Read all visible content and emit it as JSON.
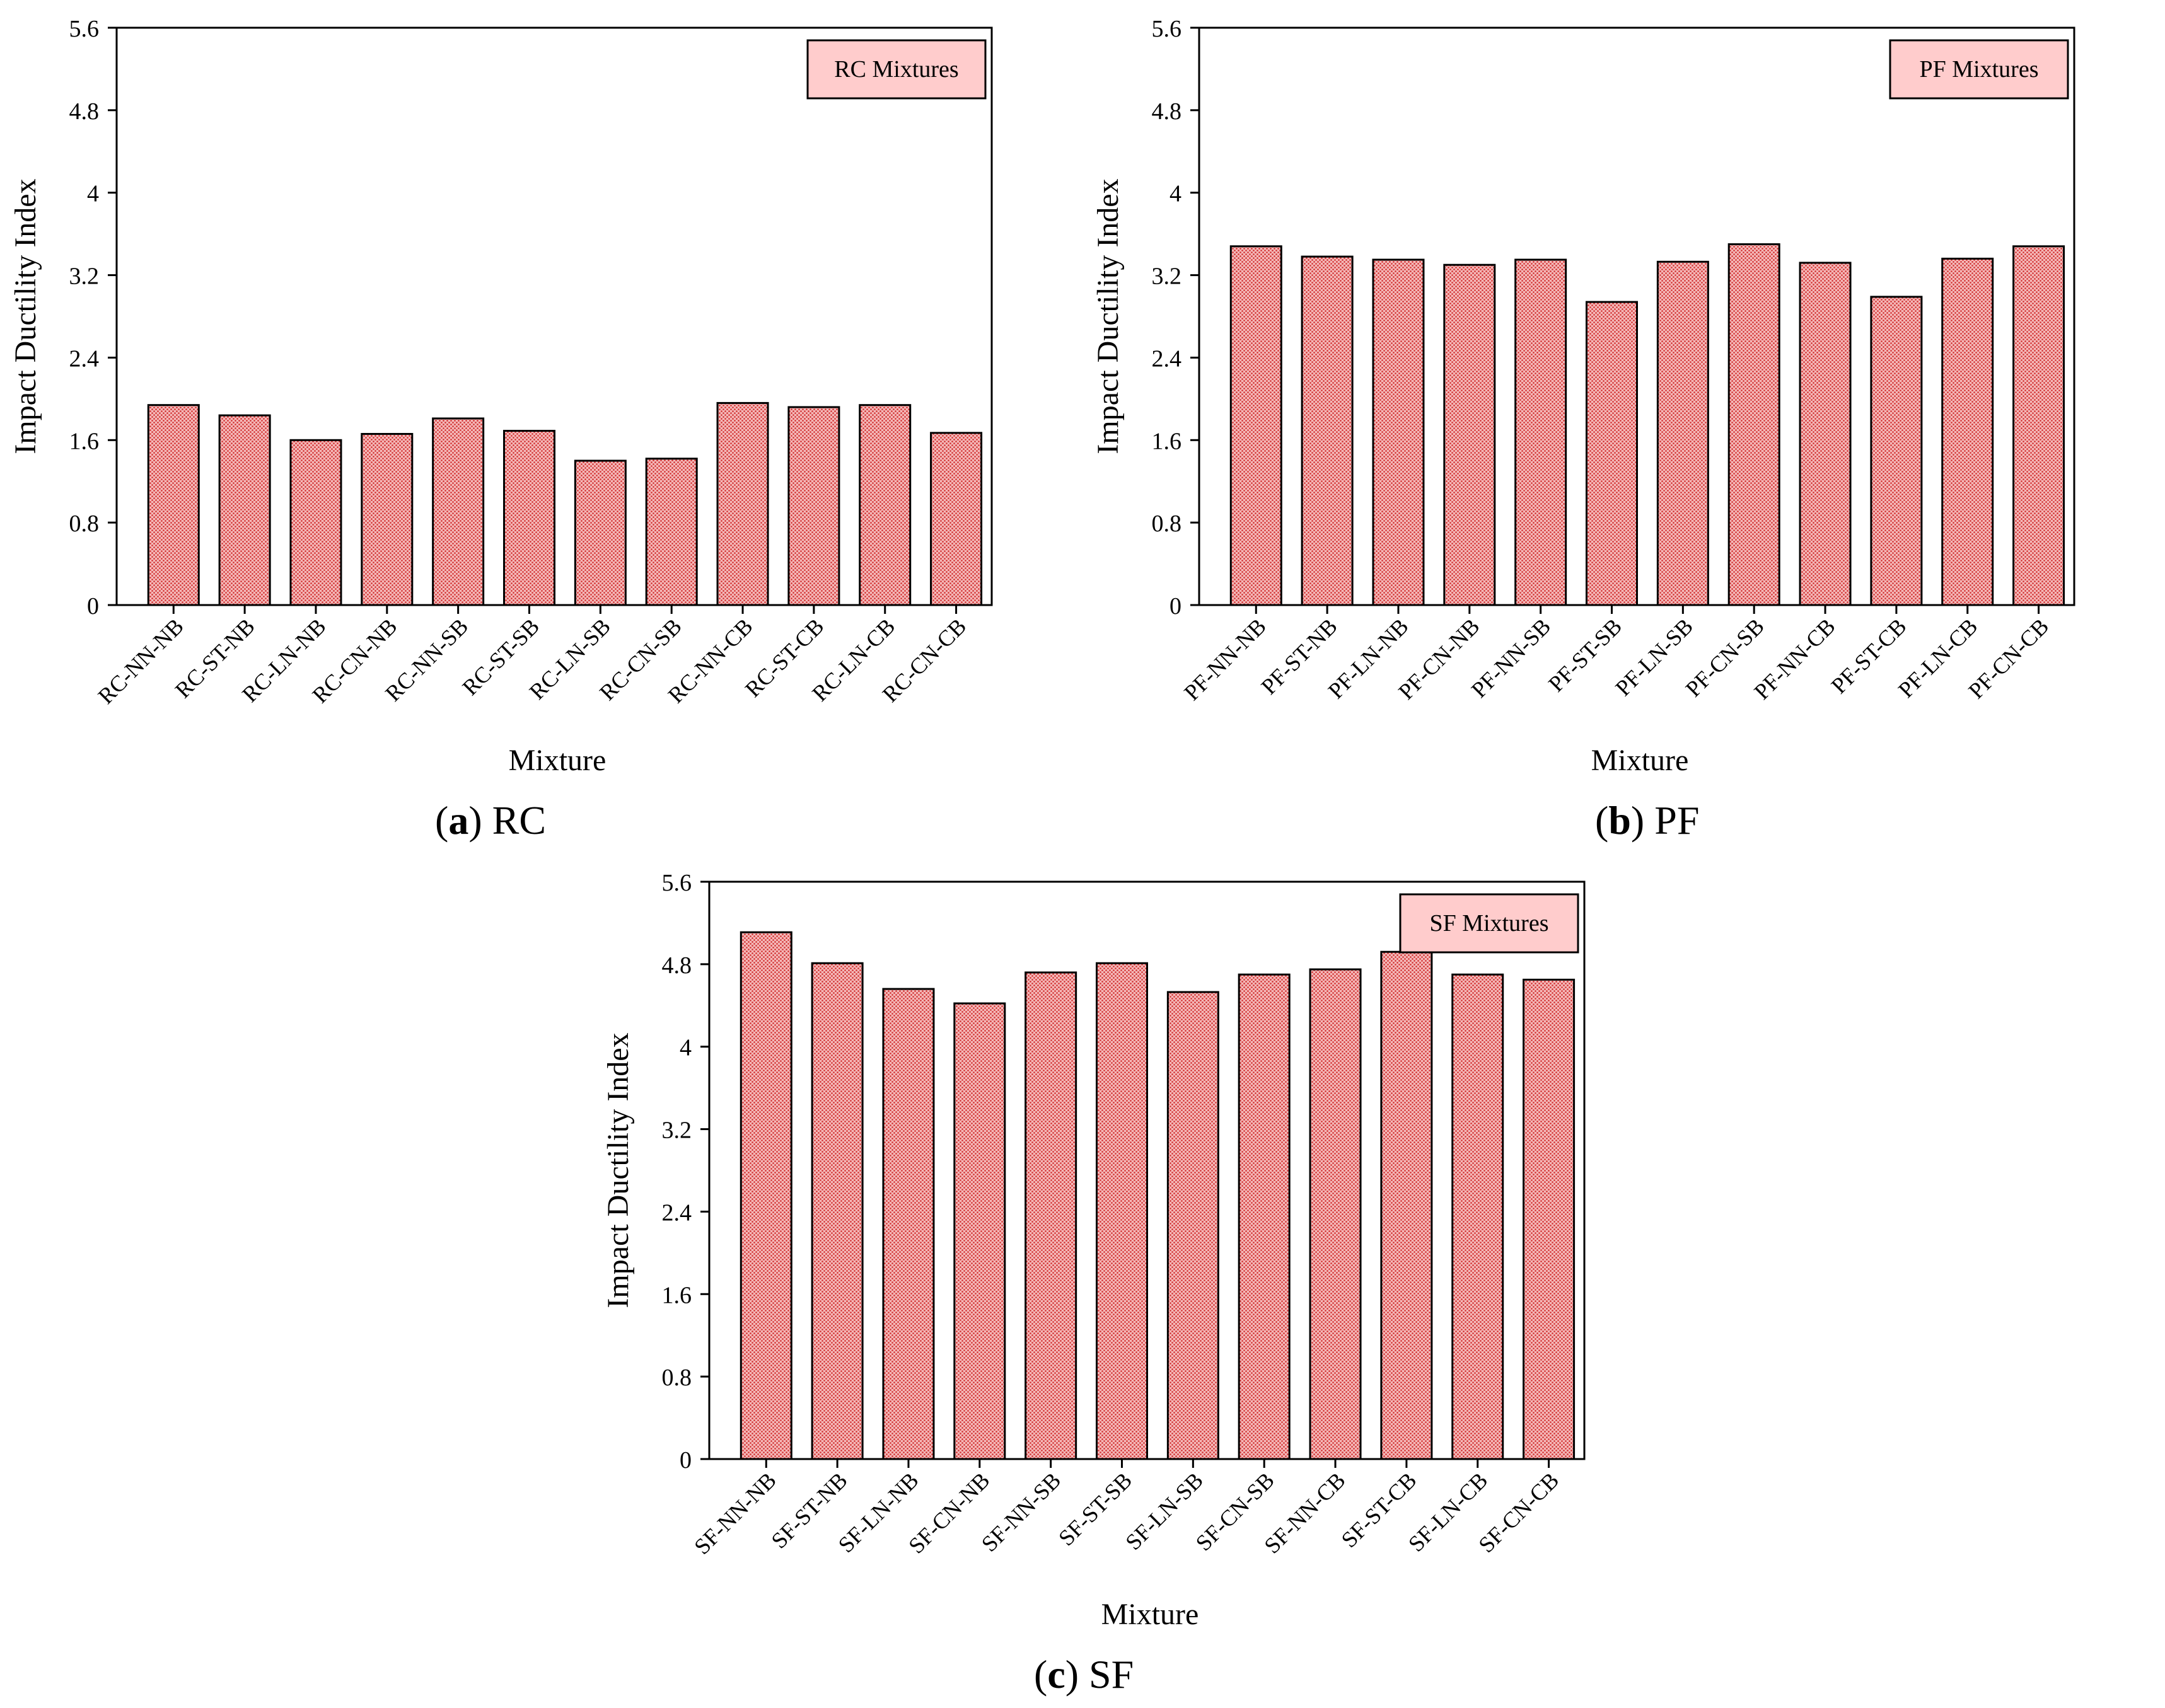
{
  "colors": {
    "bar_fill": "#f4b8b8",
    "bar_dot": "#d02a2a",
    "legend_bg": "#ffcccc",
    "axis": "#000000"
  },
  "chart_data": [
    {
      "type": "bar",
      "id": "a",
      "legend": "RC Mixtures",
      "ylabel": "Impact Ductility Index",
      "xlabel": "Mixture",
      "ylim": [
        0,
        5.6
      ],
      "yticks": [
        "0",
        "0.8",
        "1.6",
        "2.4",
        "3.2",
        "4",
        "4.8",
        "5.6"
      ],
      "categories": [
        "RC-NN-NB",
        "RC-ST-NB",
        "RC-LN-NB",
        "RC-CN-NB",
        "RC-NN-SB",
        "RC-ST-SB",
        "RC-LN-SB",
        "RC-CN-SB",
        "RC-NN-CB",
        "RC-ST-CB",
        "RC-LN-CB",
        "RC-CN-CB"
      ],
      "values": [
        1.94,
        1.84,
        1.6,
        1.66,
        1.81,
        1.69,
        1.4,
        1.42,
        1.96,
        1.92,
        1.94,
        1.67
      ]
    },
    {
      "type": "bar",
      "id": "b",
      "legend": "PF Mixtures",
      "ylabel": "Impact Ductility Index",
      "xlabel": "Mixture",
      "ylim": [
        0,
        5.6
      ],
      "yticks": [
        "0",
        "0.8",
        "1.6",
        "2.4",
        "3.2",
        "4",
        "4.8",
        "5.6"
      ],
      "categories": [
        "PF-NN-NB",
        "PF-ST-NB",
        "PF-LN-NB",
        "PF-CN-NB",
        "PF-NN-SB",
        "PF-ST-SB",
        "PF-LN-SB",
        "PF-CN-SB",
        "PF-NN-CB",
        "PF-ST-CB",
        "PF-LN-CB",
        "PF-CN-CB"
      ],
      "values": [
        3.48,
        3.38,
        3.35,
        3.3,
        3.35,
        2.94,
        3.33,
        3.5,
        3.32,
        2.99,
        3.36,
        3.48
      ]
    },
    {
      "type": "bar",
      "id": "c",
      "legend": "SF Mixtures",
      "ylabel": "Impact Ductility Index",
      "xlabel": "Mixture",
      "ylim": [
        0,
        5.6
      ],
      "yticks": [
        "0",
        "0.8",
        "1.6",
        "2.4",
        "3.2",
        "4",
        "4.8",
        "5.6"
      ],
      "categories": [
        "SF-NN-NB",
        "SF-ST-NB",
        "SF-LN-NB",
        "SF-CN-NB",
        "SF-NN-SB",
        "SF-ST-SB",
        "SF-LN-SB",
        "SF-CN-SB",
        "SF-NN-CB",
        "SF-ST-CB",
        "SF-LN-CB",
        "SF-CN-CB"
      ],
      "values": [
        5.11,
        4.81,
        4.56,
        4.42,
        4.72,
        4.81,
        4.53,
        4.7,
        4.75,
        4.92,
        4.7,
        4.65
      ]
    }
  ],
  "captions": [
    {
      "letter": "a",
      "open": "(",
      "close": ")",
      "label": "RC"
    },
    {
      "letter": "b",
      "open": "(",
      "close": ")",
      "label": "PF"
    },
    {
      "letter": "c",
      "open": "(",
      "close": ")",
      "label": "SF"
    }
  ]
}
